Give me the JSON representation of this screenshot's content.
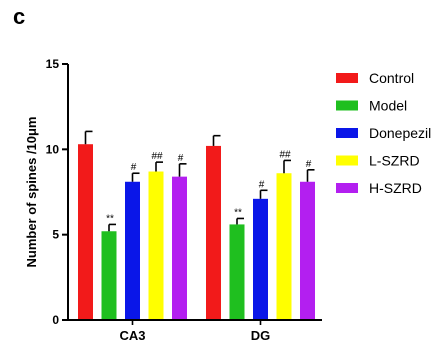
{
  "panel_label": "c",
  "chart_data": {
    "type": "bar",
    "title": "",
    "xlabel": "",
    "ylabel": "Number of spines /10μm",
    "ylim": [
      0,
      15
    ],
    "yticks": [
      "0",
      "5",
      "10",
      "15"
    ],
    "categories": [
      "CA3",
      "DG"
    ],
    "legend_position": "right",
    "series": [
      {
        "name": "Control",
        "color": "#f21a1a",
        "values": [
          10.3,
          10.2
        ],
        "errors": [
          0.75,
          0.6
        ],
        "annotations": [
          "",
          ""
        ]
      },
      {
        "name": "Model",
        "color": "#1fbf1f",
        "values": [
          5.2,
          5.6
        ],
        "errors": [
          0.4,
          0.35
        ],
        "annotations": [
          "**",
          "**"
        ]
      },
      {
        "name": "Donepezil",
        "color": "#0a16e8",
        "values": [
          8.1,
          7.1
        ],
        "errors": [
          0.5,
          0.5
        ],
        "annotations": [
          "#",
          "#"
        ]
      },
      {
        "name": "L-SZRD",
        "color": "#ffff00",
        "values": [
          8.7,
          8.6
        ],
        "errors": [
          0.55,
          0.75
        ],
        "annotations": [
          "##",
          "##"
        ]
      },
      {
        "name": "H-SZRD",
        "color": "#b31ff0",
        "values": [
          8.4,
          8.1
        ],
        "errors": [
          0.75,
          0.7
        ],
        "annotations": [
          "#",
          "#"
        ]
      }
    ]
  }
}
